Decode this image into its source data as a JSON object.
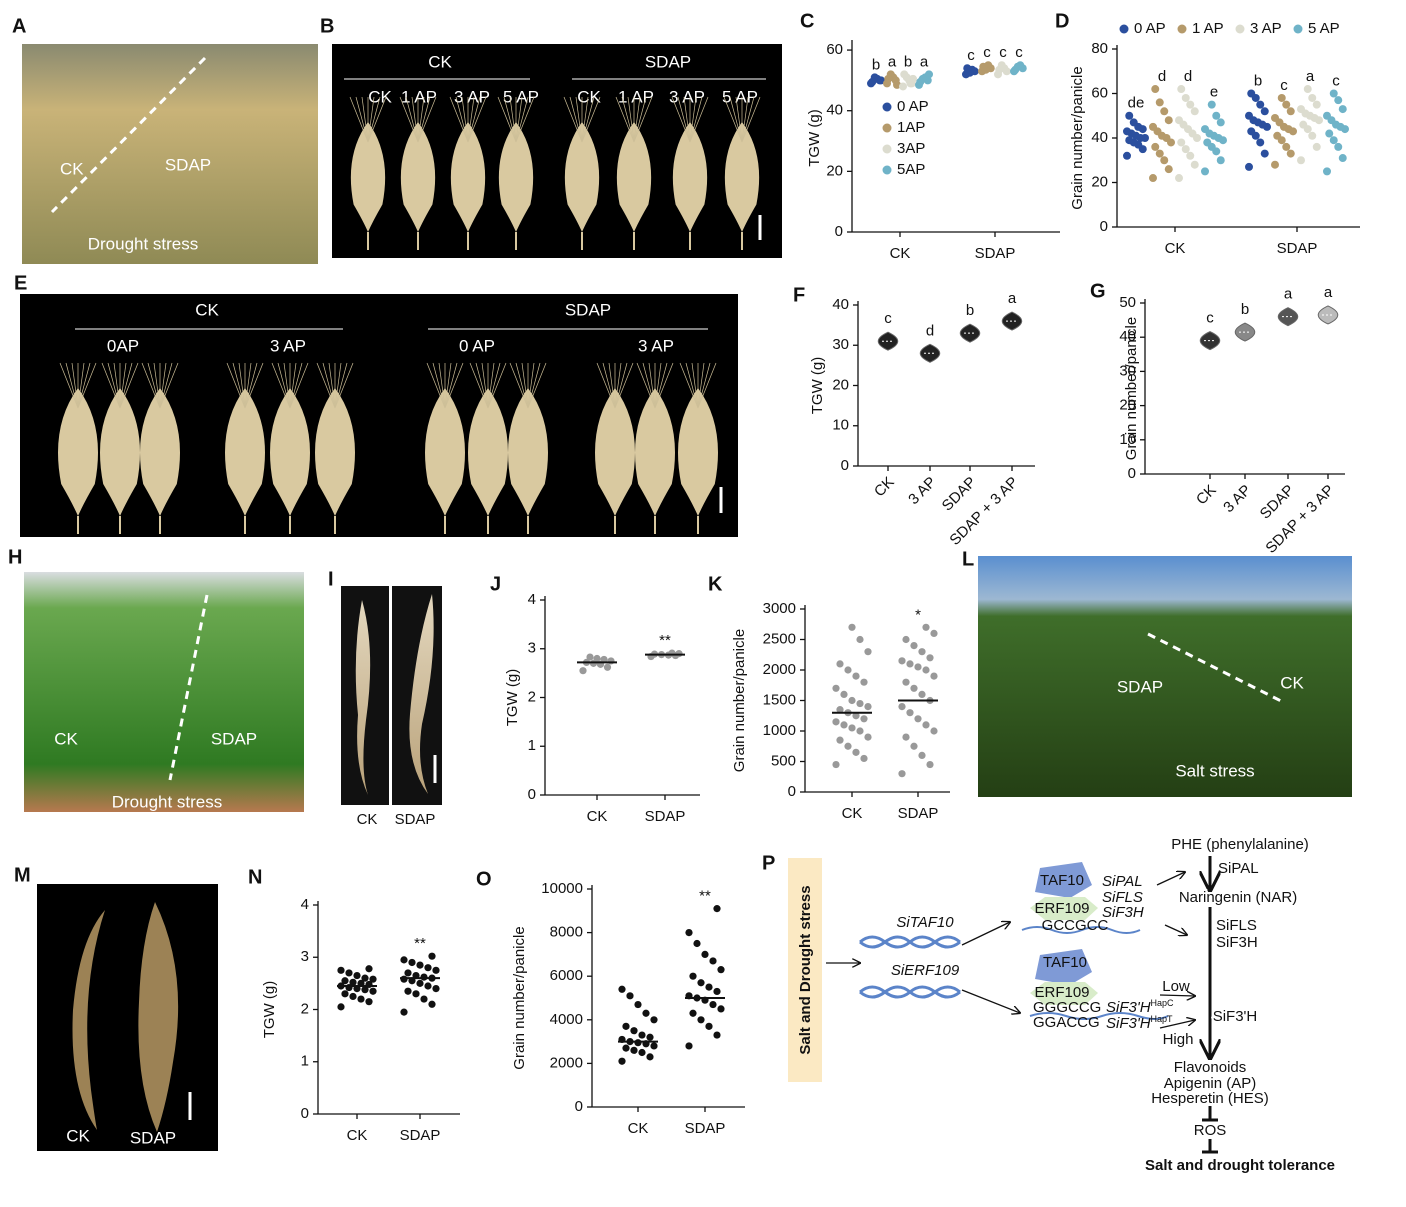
{
  "panels": [
    "A",
    "B",
    "C",
    "D",
    "E",
    "F",
    "G",
    "H",
    "I",
    "J",
    "K",
    "L",
    "M",
    "N",
    "O",
    "P"
  ],
  "photos": {
    "A": [
      "CK",
      "SDAP",
      "Drought stress"
    ],
    "B": [
      "CK",
      "SDAP",
      "CK",
      "1 AP",
      "3 AP",
      "5 AP",
      "CK",
      "1 AP",
      "3 AP",
      "5 AP"
    ],
    "E": [
      "CK",
      "SDAP",
      "0AP",
      "3 AP",
      "0 AP",
      "3 AP"
    ],
    "H": [
      "CK",
      "SDAP",
      "Drought stress"
    ],
    "I": [
      "CK",
      "SDAP"
    ],
    "L": [
      "SDAP",
      "CK",
      "Salt stress"
    ],
    "M": [
      "CK",
      "SDAP"
    ]
  },
  "chart_data": [
    {
      "type": "strip",
      "y_label": "TGW (g)",
      "categories": [
        "CK",
        "SDAP"
      ],
      "ylim": [
        0,
        62
      ],
      "yticks": [
        0,
        20,
        40,
        60
      ],
      "legend": "inside",
      "series": [
        {
          "name": "0 AP",
          "color": "#2b4f9e",
          "values": [
            [
              49,
              50,
              50.5,
              51,
              49.5,
              50
            ],
            [
              52,
              53,
              53.5,
              52.5,
              54
            ]
          ],
          "letters": [
            "b",
            "c"
          ]
        },
        {
          "name": "1AP",
          "color": "#b59a6b",
          "values": [
            [
              49,
              50,
              51,
              52,
              50.5,
              48.5
            ],
            [
              53,
              54,
              55,
              53.5,
              54.5
            ]
          ],
          "letters": [
            "a",
            "c"
          ]
        },
        {
          "name": "3AP",
          "color": "#dcdccf",
          "values": [
            [
              48,
              49,
              50,
              51,
              52,
              50.5,
              49
            ],
            [
              52,
              53,
              54,
              55,
              53.5
            ]
          ],
          "letters": [
            "b",
            "c"
          ]
        },
        {
          "name": "5AP",
          "color": "#6fb3c8",
          "values": [
            [
              48.5,
              50,
              51,
              50.5,
              49.5,
              52
            ],
            [
              53,
              54,
              55,
              54.5,
              53.5
            ]
          ],
          "letters": [
            "a",
            "c"
          ]
        }
      ]
    },
    {
      "type": "strip",
      "y_label": "Grain number/panicle",
      "categories": [
        "CK",
        "SDAP"
      ],
      "ylim": [
        0,
        80
      ],
      "yticks": [
        0,
        20,
        40,
        60,
        80
      ],
      "legend": "top",
      "series": [
        {
          "name": "0 AP",
          "color": "#2b4f9e",
          "values": [
            [
              32,
              35,
              37,
              38,
              39,
              40,
              40,
              41,
              42,
              43,
              44,
              45,
              47,
              50
            ],
            [
              27,
              33,
              38,
              41,
              43,
              45,
              46,
              47,
              48,
              50,
              52,
              55,
              58,
              60
            ]
          ],
          "letters": [
            "de",
            "b"
          ]
        },
        {
          "name": "1 AP",
          "color": "#b59a6b",
          "values": [
            [
              22,
              26,
              30,
              33,
              36,
              38,
              40,
              41,
              43,
              45,
              48,
              52,
              56,
              62
            ],
            [
              28,
              33,
              36,
              39,
              41,
              43,
              44,
              45,
              47,
              49,
              52,
              55,
              58
            ]
          ],
          "letters": [
            "d",
            "c"
          ]
        },
        {
          "name": "3 AP",
          "color": "#dcdccf",
          "values": [
            [
              22,
              28,
              32,
              35,
              38,
              40,
              42,
              44,
              46,
              48,
              52,
              55,
              58,
              62
            ],
            [
              30,
              36,
              41,
              44,
              46,
              48,
              49,
              50,
              51,
              53,
              55,
              58,
              62
            ]
          ],
          "letters": [
            "d",
            "a"
          ]
        },
        {
          "name": "5 AP",
          "color": "#6fb3c8",
          "values": [
            [
              25,
              30,
              34,
              36,
              38,
              39,
              40,
              41,
              42,
              44,
              47,
              50,
              55
            ],
            [
              25,
              31,
              36,
              39,
              42,
              44,
              45,
              46,
              48,
              50,
              53,
              57,
              60
            ]
          ],
          "letters": [
            "e",
            "c"
          ]
        }
      ]
    },
    {
      "type": "violin",
      "y_label": "TGW (g)",
      "categories": [
        "CK",
        "3 AP",
        "SDAP",
        "SDAP + 3 AP"
      ],
      "values": [
        31,
        28,
        33,
        36
      ],
      "letters": [
        "c",
        "d",
        "b",
        "a"
      ],
      "colors": [
        "#222",
        "#222",
        "#222",
        "#222"
      ],
      "ylim": [
        0,
        40
      ],
      "yticks": [
        0,
        10,
        20,
        30,
        40
      ]
    },
    {
      "type": "violin",
      "y_label": "Grain number/panicle",
      "categories": [
        "CK",
        "3 AP",
        "SDAP",
        "SDAP + 3 AP"
      ],
      "values": [
        39,
        41.5,
        46,
        46.5
      ],
      "letters": [
        "c",
        "b",
        "a",
        "a"
      ],
      "colors": [
        "#333",
        "#888",
        "#555",
        "#bbb"
      ],
      "ylim": [
        0,
        50
      ],
      "yticks": [
        0,
        10,
        20,
        30,
        40,
        50
      ]
    },
    {
      "type": "strip",
      "y_label": "TGW (g)",
      "categories": [
        "CK",
        "SDAP"
      ],
      "color": "#999",
      "ylim": [
        0,
        4
      ],
      "yticks": [
        0,
        1,
        2,
        3,
        4
      ],
      "values": [
        [
          2.55,
          2.62,
          2.68,
          2.7,
          2.72,
          2.75,
          2.78,
          2.8,
          2.83
        ],
        [
          2.84,
          2.86,
          2.87,
          2.88,
          2.89,
          2.9,
          2.91
        ]
      ],
      "means": [
        2.72,
        2.88
      ],
      "letters": [
        null,
        "**"
      ]
    },
    {
      "type": "strip",
      "y_label": "Grain number/panicle",
      "categories": [
        "CK",
        "SDAP"
      ],
      "color": "#999",
      "ylim": [
        0,
        3000
      ],
      "yticks": [
        0,
        500,
        1000,
        1500,
        2000,
        2500,
        3000
      ],
      "values": [
        [
          450,
          550,
          650,
          750,
          850,
          900,
          1000,
          1050,
          1100,
          1150,
          1200,
          1250,
          1300,
          1350,
          1400,
          1450,
          1500,
          1600,
          1700,
          1800,
          1900,
          2000,
          2100,
          2300,
          2500,
          2700
        ],
        [
          300,
          450,
          600,
          750,
          900,
          1000,
          1100,
          1200,
          1300,
          1400,
          1500,
          1600,
          1700,
          1800,
          1900,
          2000,
          2050,
          2100,
          2150,
          2200,
          2300,
          2400,
          2500,
          2600,
          2700
        ]
      ],
      "means": [
        1300,
        1500
      ],
      "letters": [
        null,
        "*"
      ]
    },
    {
      "type": "strip",
      "y_label": "TGW (g)",
      "categories": [
        "CK",
        "SDAP"
      ],
      "color": "#111",
      "ylim": [
        0,
        4
      ],
      "yticks": [
        0,
        1,
        2,
        3,
        4
      ],
      "values": [
        [
          2.05,
          2.15,
          2.2,
          2.25,
          2.3,
          2.35,
          2.38,
          2.4,
          2.42,
          2.45,
          2.48,
          2.5,
          2.52,
          2.55,
          2.58,
          2.6,
          2.65,
          2.7,
          2.75,
          2.78
        ],
        [
          1.95,
          2.1,
          2.2,
          2.3,
          2.35,
          2.4,
          2.45,
          2.5,
          2.55,
          2.58,
          2.6,
          2.62,
          2.65,
          2.7,
          2.75,
          2.8,
          2.85,
          2.9,
          2.95,
          3.02
        ]
      ],
      "means": [
        2.45,
        2.6
      ],
      "letters": [
        null,
        "**"
      ]
    },
    {
      "type": "strip",
      "y_label": "Grain number/panicle",
      "categories": [
        "CK",
        "SDAP"
      ],
      "color": "#111",
      "ylim": [
        0,
        10000
      ],
      "yticks": [
        0,
        2000,
        4000,
        6000,
        8000,
        10000
      ],
      "values": [
        [
          2100,
          2300,
          2500,
          2600,
          2700,
          2800,
          2900,
          2950,
          3000,
          3100,
          3200,
          3300,
          3500,
          3700,
          4000,
          4300,
          4700,
          5100,
          5400
        ],
        [
          2800,
          3300,
          3700,
          4000,
          4300,
          4500,
          4700,
          4900,
          5000,
          5100,
          5300,
          5500,
          5700,
          6000,
          6300,
          6700,
          7000,
          7500,
          8000,
          9100
        ]
      ],
      "means": [
        3000,
        5000
      ],
      "letters": [
        null,
        "**"
      ]
    }
  ],
  "diagram": {
    "stress": "Salt and Drought stress",
    "genes": [
      "SiTAF10",
      "SiERF109"
    ],
    "box1": {
      "tf": [
        "TAF10",
        "ERF109"
      ],
      "targets": [
        "SiPAL",
        "SiFLS",
        "SiF3H"
      ],
      "motif": "GCCGCC"
    },
    "box2": {
      "tf": [
        "TAF10",
        "ERF109"
      ],
      "motifs": [
        "GGGCCG",
        "GGACCG"
      ],
      "gene": "SiF3'H",
      "haps": [
        "HapC",
        "HapT"
      ]
    },
    "pathway": [
      "PHE (phenylalanine)",
      "SiPAL",
      "Naringenin (NAR)",
      "SiFLS",
      "SiF3H",
      "Low",
      "High",
      "SiF3'H",
      "Flavonoids",
      "Apigenin (AP)",
      "Hesperetin (HES)",
      "ROS"
    ],
    "outcome": "Salt and drought tolerance"
  }
}
